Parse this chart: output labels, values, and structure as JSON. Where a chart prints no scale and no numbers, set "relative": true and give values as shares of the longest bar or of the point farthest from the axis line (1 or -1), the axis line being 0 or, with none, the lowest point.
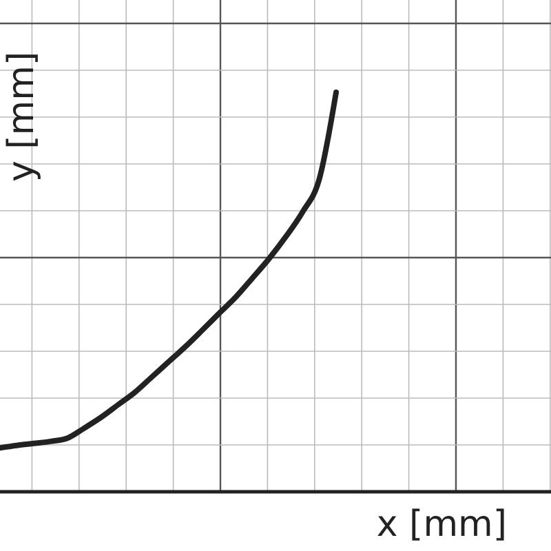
{
  "chart_data": {
    "type": "line",
    "relative": true,
    "xlabel": "x [mm]",
    "ylabel": "y [mm]",
    "grid": true,
    "categories": [
      null,
      null,
      null,
      null,
      null,
      null,
      null,
      null,
      null,
      null,
      null,
      null,
      null,
      null,
      null,
      null,
      null,
      null,
      null,
      null,
      null,
      null,
      null,
      null,
      null,
      null,
      null,
      null,
      null,
      null,
      null,
      null,
      null
    ],
    "series": [
      {
        "color": "#222222",
        "values": [
          0.11,
          0.116,
          0.121,
          0.126,
          0.134,
          0.159,
          0.186,
          0.217,
          0.248,
          0.286,
          0.324,
          0.362,
          0.403,
          0.445,
          0.486,
          0.534,
          0.583,
          0.638,
          0.7,
          0.783,
          1.0,
          null,
          null,
          null,
          null,
          null,
          null,
          null,
          null,
          null,
          null,
          null,
          null
        ]
      }
    ]
  }
}
